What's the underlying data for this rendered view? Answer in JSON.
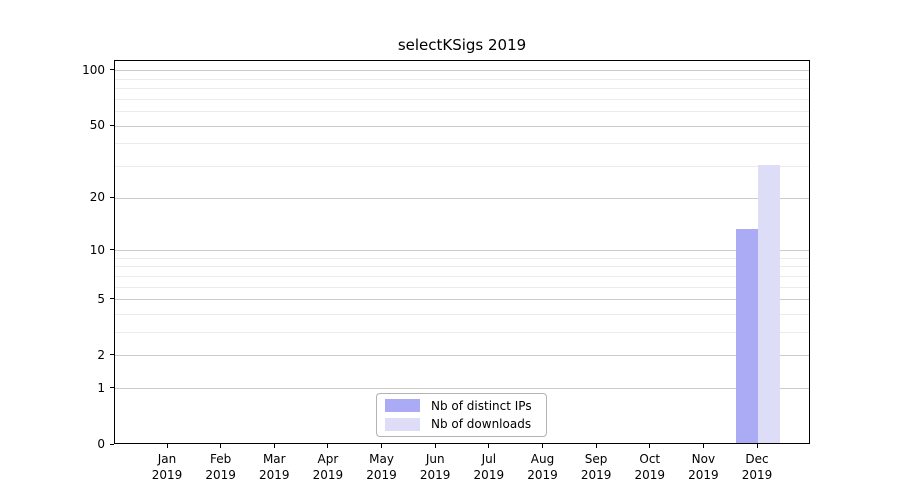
{
  "title": "selectKSigs 2019",
  "chart_data": {
    "type": "bar",
    "title": "selectKSigs 2019",
    "yscale": "log1p",
    "categories": [
      "Jan",
      "Feb",
      "Mar",
      "Apr",
      "May",
      "Jun",
      "Jul",
      "Aug",
      "Sep",
      "Oct",
      "Nov",
      "Dec"
    ],
    "x_year": "2019",
    "series": [
      {
        "name": "Nb of distinct IPs",
        "color": "#aaaaf5",
        "values": [
          0,
          0,
          0,
          0,
          0,
          0,
          0,
          0,
          0,
          0,
          0,
          13
        ]
      },
      {
        "name": "Nb of downloads",
        "color": "#ddddf8",
        "values": [
          0,
          0,
          0,
          0,
          0,
          0,
          0,
          0,
          0,
          0,
          0,
          30
        ]
      }
    ],
    "yticks_major": [
      0,
      1,
      2,
      5,
      10,
      20,
      50,
      100
    ],
    "yticks_minor": [
      3,
      4,
      6,
      7,
      8,
      9,
      30,
      40,
      60,
      70,
      80,
      90
    ],
    "ylim": [
      0,
      113
    ],
    "xlabel": "",
    "ylabel": "",
    "grid": true,
    "legend_position": "bottom-center"
  }
}
